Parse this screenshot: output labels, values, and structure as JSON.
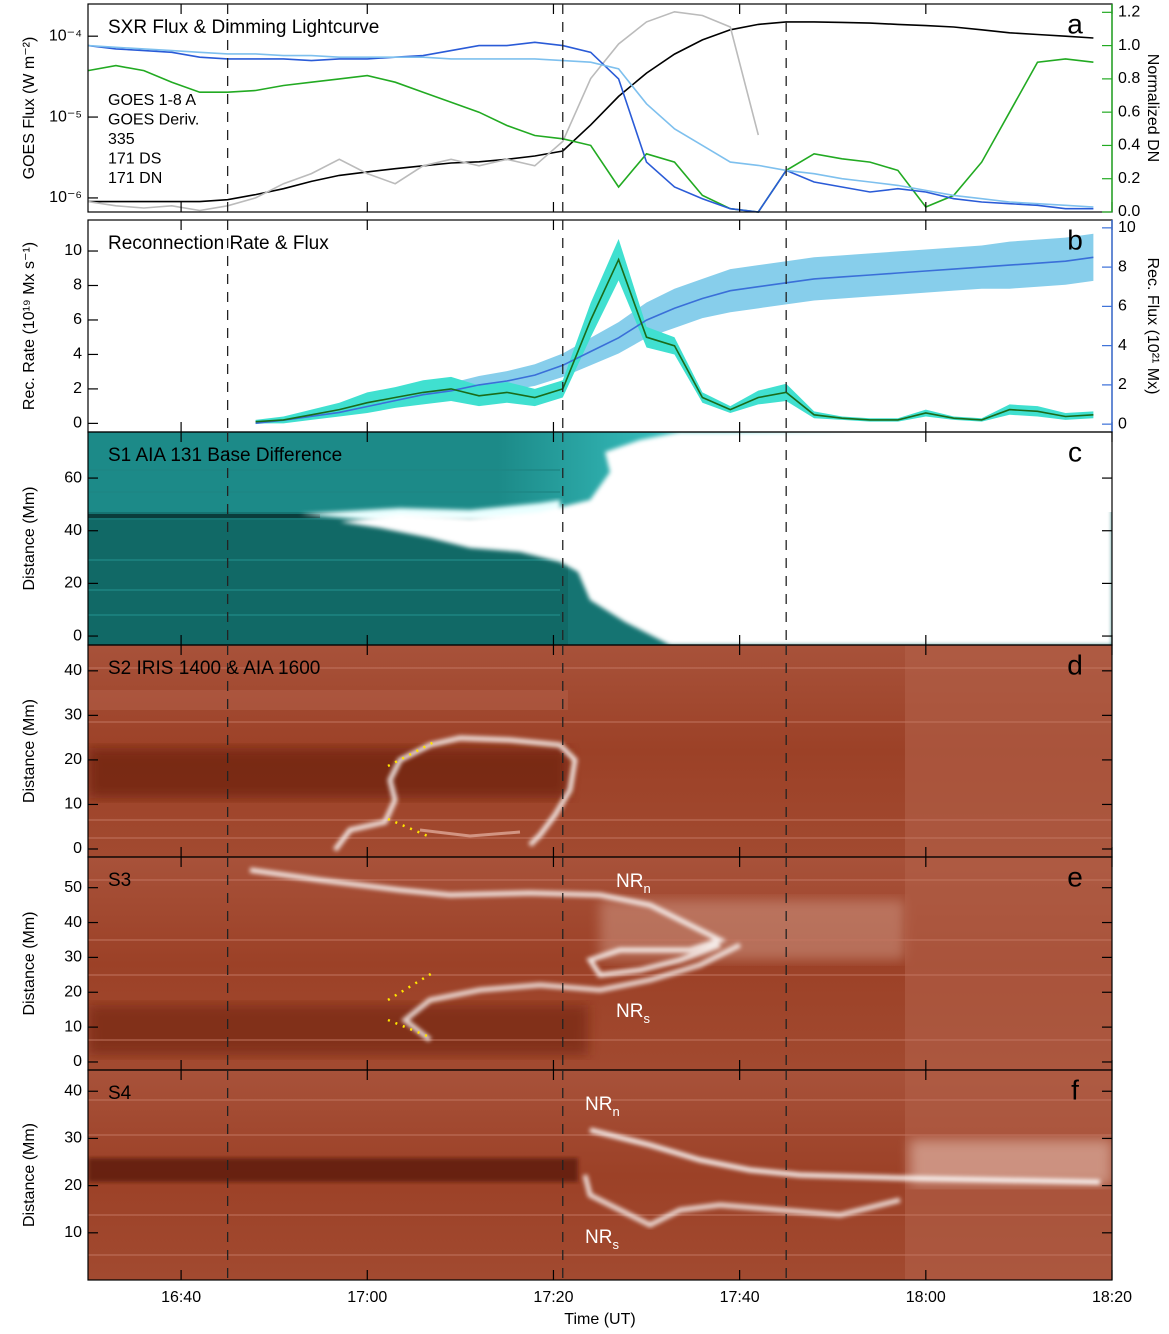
{
  "chart_data": [
    {
      "type": "line",
      "title": "SXR Flux & Dimming Lightcurve",
      "panel_label": "a",
      "ylabel": "GOES Flux (W m⁻²)",
      "y2label": "Normalized DN",
      "y2color": "#22aa22",
      "ylog": true,
      "xlim": [
        "16:30",
        "18:20"
      ],
      "xticks": [
        "16:40",
        "17:00",
        "17:20",
        "17:40",
        "18:00",
        "18:20"
      ],
      "vlines": [
        "16:45",
        "17:21",
        "17:45"
      ],
      "ylim": [
        6.7e-07,
        0.00025
      ],
      "yticks": [
        {
          "value": 1e-06,
          "label": "10⁻⁶"
        },
        {
          "value": 1e-05,
          "label": "10⁻⁵"
        },
        {
          "value": 0.0001,
          "label": "10⁻⁴"
        }
      ],
      "y2lim": [
        0,
        1.25
      ],
      "y2ticks": [
        {
          "value": 0,
          "label": "0.0"
        },
        0.2,
        0.4,
        0.6,
        0.8,
        {
          "value": 1,
          "label": "1.0"
        },
        1.2
      ],
      "x": [
        "16:30",
        "16:33",
        "16:36",
        "16:39",
        "16:42",
        "16:45",
        "16:48",
        "16:51",
        "16:54",
        "16:57",
        "17:00",
        "17:03",
        "17:06",
        "17:09",
        "17:12",
        "17:15",
        "17:18",
        "17:21",
        "17:24",
        "17:27",
        "17:30",
        "17:33",
        "17:36",
        "17:39",
        "17:42",
        "17:45",
        "17:48",
        "17:51",
        "17:54",
        "17:57",
        "18:00",
        "18:03",
        "18:06",
        "18:09",
        "18:12",
        "18:15",
        "18:18"
      ],
      "series": [
        {
          "name": "GOES 1-8 A",
          "color": "#000000",
          "values": [
            9e-07,
            9e-07,
            9e-07,
            9e-07,
            9e-07,
            9.5e-07,
            1.1e-06,
            1.3e-06,
            1.6e-06,
            1.9e-06,
            2.1e-06,
            2.3e-06,
            2.5e-06,
            2.7e-06,
            2.8e-06,
            3e-06,
            3.3e-06,
            3.8e-06,
            8e-06,
            1.8e-05,
            3.5e-05,
            6e-05,
            9e-05,
            0.00012,
            0.00014,
            0.00015,
            0.00015,
            0.000148,
            0.000145,
            0.00014,
            0.000135,
            0.00013,
            0.00012,
            0.00011,
            0.000105,
            0.0001,
            9.5e-05
          ]
        },
        {
          "name": "GOES Deriv.",
          "color": "#bbbbbb",
          "values": [
            9e-07,
            8e-07,
            7.5e-07,
            8e-07,
            7e-07,
            8e-07,
            1e-06,
            1.5e-06,
            2e-06,
            3e-06,
            2e-06,
            1.5e-06,
            2.5e-06,
            3e-06,
            2.5e-06,
            3e-06,
            2.5e-06,
            5e-06,
            3e-05,
            8e-05,
            0.00015,
            0.0002,
            0.00018,
            0.00013,
            6e-06,
            null,
            null,
            null,
            null,
            null,
            null,
            null,
            null,
            null,
            null,
            null,
            null
          ]
        },
        {
          "name": "335",
          "color": "#22aa22",
          "axis": "y2",
          "values": [
            0.85,
            0.88,
            0.85,
            0.78,
            0.72,
            0.72,
            0.73,
            0.76,
            0.78,
            0.8,
            0.82,
            0.78,
            0.72,
            0.66,
            0.6,
            0.52,
            0.46,
            0.44,
            0.4,
            0.15,
            0.35,
            0.3,
            0.1,
            0.02,
            0,
            0.25,
            0.35,
            0.32,
            0.3,
            0.25,
            0.03,
            0.1,
            0.3,
            0.6,
            0.9,
            0.92,
            0.9
          ]
        },
        {
          "name": "171 DS",
          "color": "#2a5bd7",
          "axis": "y2",
          "values": [
            1.0,
            0.98,
            0.97,
            0.96,
            0.93,
            0.92,
            0.92,
            0.92,
            0.91,
            0.92,
            0.92,
            0.93,
            0.94,
            0.97,
            1.0,
            1.0,
            1.02,
            1.0,
            0.96,
            0.8,
            0.3,
            0.15,
            0.08,
            0.02,
            0,
            0.25,
            0.18,
            0.15,
            0.12,
            0.14,
            0.12,
            0.08,
            0.06,
            0.05,
            0.04,
            0.02,
            0.02
          ]
        },
        {
          "name": "171 DN",
          "color": "#7ec0ee",
          "axis": "y2",
          "values": [
            1.0,
            0.99,
            0.98,
            0.97,
            0.96,
            0.95,
            0.95,
            0.94,
            0.94,
            0.93,
            0.93,
            0.93,
            0.93,
            0.92,
            0.92,
            0.92,
            0.92,
            0.91,
            0.9,
            0.86,
            0.65,
            0.5,
            0.4,
            0.3,
            0.28,
            0.25,
            0.23,
            0.2,
            0.18,
            0.16,
            0.13,
            0.1,
            0.08,
            0.06,
            0.05,
            0.04,
            0.03
          ]
        }
      ]
    },
    {
      "type": "line",
      "title": "Reconnection Rate & Flux",
      "panel_label": "b",
      "ylabel": "Rec. Rate (10¹⁹ Mx s⁻¹)",
      "y2label": "Rec. Flux (10²¹ Mx)",
      "y2color": "#3a6fd8",
      "xlim": [
        "16:30",
        "18:20"
      ],
      "xticks": [
        "16:40",
        "17:00",
        "17:20",
        "17:40",
        "18:00",
        "18:20"
      ],
      "vlines": [
        "16:45",
        "17:21",
        "17:45"
      ],
      "ylim": [
        -0.5,
        11.8
      ],
      "yticks": [
        0,
        2,
        4,
        6,
        8,
        10
      ],
      "y2lim": [
        -0.4,
        10.4
      ],
      "y2ticks": [
        0,
        2,
        4,
        6,
        8,
        10
      ],
      "x": [
        "16:30",
        "16:33",
        "16:36",
        "16:39",
        "16:42",
        "16:45",
        "16:48",
        "16:51",
        "16:54",
        "16:57",
        "17:00",
        "17:03",
        "17:06",
        "17:09",
        "17:12",
        "17:15",
        "17:18",
        "17:21",
        "17:24",
        "17:27",
        "17:30",
        "17:33",
        "17:36",
        "17:39",
        "17:42",
        "17:45",
        "17:48",
        "17:51",
        "17:54",
        "17:57",
        "18:00",
        "18:03",
        "18:06",
        "18:09",
        "18:12",
        "18:15",
        "18:18"
      ],
      "series": [
        {
          "color": "#3a6fd8",
          "band_color": "#87ceeb",
          "axis": "y2",
          "values": [
            null,
            null,
            null,
            null,
            null,
            null,
            0.05,
            0.2,
            0.4,
            0.6,
            0.9,
            1.2,
            1.5,
            1.7,
            2.0,
            2.2,
            2.5,
            3.0,
            3.7,
            4.4,
            5.3,
            5.9,
            6.4,
            6.8,
            7.0,
            7.2,
            7.4,
            7.5,
            7.6,
            7.7,
            7.8,
            7.9,
            8.0,
            8.1,
            8.2,
            8.3,
            8.5
          ],
          "errors": [
            null,
            null,
            null,
            null,
            null,
            null,
            0.05,
            0.1,
            0.15,
            0.2,
            0.25,
            0.3,
            0.35,
            0.4,
            0.45,
            0.5,
            0.55,
            0.6,
            0.7,
            0.8,
            0.9,
            1.0,
            1.0,
            1.1,
            1.1,
            1.1,
            1.1,
            1.1,
            1.1,
            1.1,
            1.1,
            1.1,
            1.1,
            1.2,
            1.2,
            1.2,
            1.2
          ]
        },
        {
          "color": "#1a6b1a",
          "band_color": "#40e0d0",
          "values": [
            null,
            null,
            null,
            null,
            null,
            null,
            0.1,
            0.2,
            0.5,
            0.8,
            1.2,
            1.5,
            1.8,
            2.0,
            1.6,
            1.8,
            1.5,
            2.0,
            6.0,
            9.5,
            5.0,
            4.5,
            1.5,
            0.8,
            1.5,
            1.8,
            0.5,
            0.3,
            0.2,
            0.2,
            0.6,
            0.3,
            0.2,
            0.8,
            0.7,
            0.4,
            0.5
          ],
          "errors": [
            null,
            null,
            null,
            null,
            null,
            null,
            0.1,
            0.2,
            0.3,
            0.4,
            0.6,
            0.6,
            0.7,
            0.7,
            0.6,
            0.6,
            0.5,
            0.5,
            1.0,
            1.2,
            0.6,
            0.5,
            0.3,
            0.2,
            0.4,
            0.5,
            0.2,
            0.1,
            0.1,
            0.1,
            0.2,
            0.1,
            0.1,
            0.3,
            0.3,
            0.2,
            0.2
          ]
        }
      ]
    },
    {
      "type": "image",
      "title": "S1  AIA 131 Base Difference",
      "panel_label": "c",
      "ylabel": "Distance (Mm)",
      "xlim": [
        "16:30",
        "18:20"
      ],
      "xticks": [
        "16:40",
        "17:00",
        "17:20",
        "17:40",
        "18:00",
        "18:20"
      ],
      "vlines": [
        "16:45",
        "17:21",
        "17:45"
      ],
      "ylim": [
        -3.4,
        77.5
      ],
      "yticks": [
        0,
        20,
        40,
        60
      ]
    },
    {
      "type": "image",
      "title": "S2  IRIS 1400 & AIA 1600",
      "panel_label": "d",
      "ylabel": "Distance (Mm)",
      "xlim": [
        "16:30",
        "18:20"
      ],
      "xticks": [
        "16:40",
        "17:00",
        "17:20",
        "17:40",
        "18:00",
        "18:20"
      ],
      "vlines": [
        "16:45",
        "17:21",
        "17:45"
      ],
      "ylim": [
        -1.8,
        45.8
      ],
      "yticks": [
        0,
        10,
        20,
        30,
        40
      ]
    },
    {
      "type": "image",
      "title": "S3",
      "panel_label": "e",
      "ylabel": "Distance (Mm)",
      "xlim": [
        "16:30",
        "18:20"
      ],
      "xticks": [
        "16:40",
        "17:00",
        "17:20",
        "17:40",
        "18:00",
        "18:20"
      ],
      "vlines": [
        "16:45",
        "17:21",
        "17:45"
      ],
      "ylim": [
        -2.3,
        58.8
      ],
      "yticks": [
        0,
        10,
        20,
        30,
        40,
        50
      ],
      "annotations": [
        {
          "text": "NR",
          "sub": "n"
        },
        {
          "text": "NR",
          "sub": "s"
        }
      ]
    },
    {
      "type": "image",
      "title": "S4",
      "panel_label": "f",
      "ylabel": "Distance (Mm)",
      "xlabel": "Time (UT)",
      "xlim": [
        "16:30",
        "18:20"
      ],
      "xticks": [
        "16:40",
        "17:00",
        "17:20",
        "17:40",
        "18:00",
        "18:20"
      ],
      "vlines": [
        "16:45",
        "17:21",
        "17:45"
      ],
      "ylim": [
        0,
        44.5
      ],
      "yticks": [
        10,
        20,
        30,
        40
      ],
      "annotations": [
        {
          "text": "NR",
          "sub": "n"
        },
        {
          "text": "NR",
          "sub": "s"
        }
      ]
    }
  ]
}
